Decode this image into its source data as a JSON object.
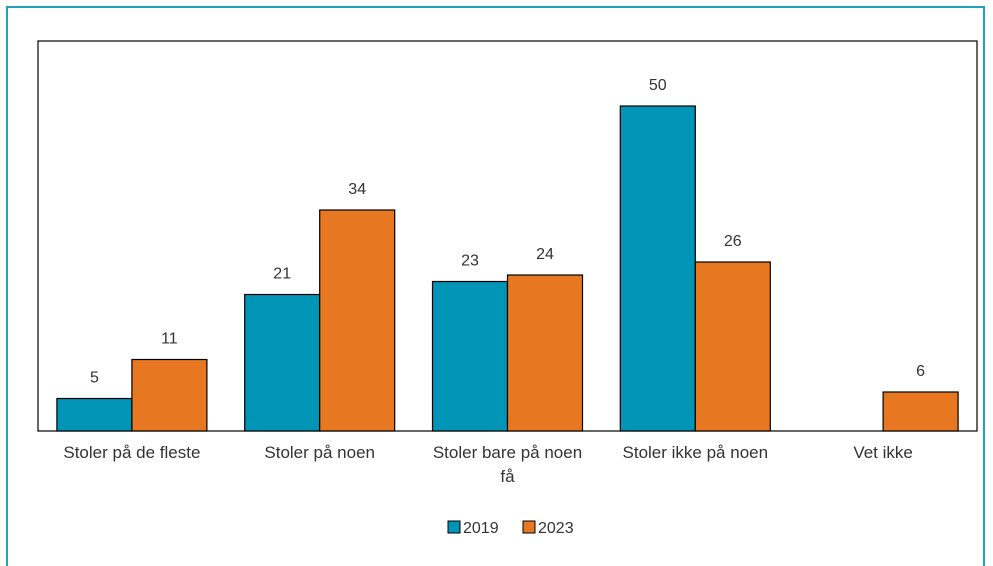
{
  "chart_data": {
    "type": "bar",
    "categories": [
      [
        "Stoler på de fleste"
      ],
      [
        "Stoler på noen"
      ],
      [
        "Stoler bare på noen",
        "få"
      ],
      [
        "Stoler ikke på noen"
      ],
      [
        "Vet ikke"
      ]
    ],
    "series": [
      {
        "name": "2019",
        "color": "#0095b6",
        "values": [
          5,
          21,
          23,
          50,
          null
        ]
      },
      {
        "name": "2023",
        "color": "#e87722",
        "values": [
          11,
          34,
          24,
          26,
          6
        ]
      }
    ],
    "ylim": [
      0,
      60
    ],
    "grid": false,
    "legend_position": "bottom-center",
    "title": "",
    "xlabel": "",
    "ylabel": ""
  }
}
